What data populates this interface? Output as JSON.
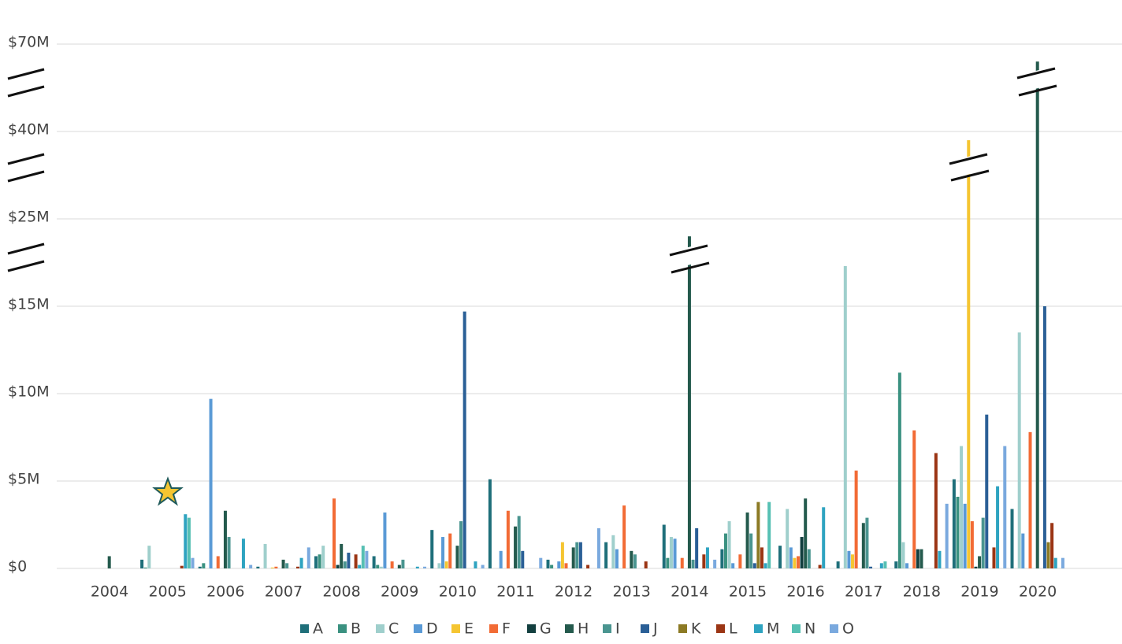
{
  "chart_data": {
    "type": "bar",
    "categories": [
      "2004",
      "2005",
      "2006",
      "2007",
      "2008",
      "2009",
      "2010",
      "2011",
      "2012",
      "2013",
      "2014",
      "2015",
      "2016",
      "2017",
      "2018",
      "2019",
      "2020"
    ],
    "ylim": [
      0,
      70
    ],
    "yticks": [
      {
        "value": 0,
        "label": "$0"
      },
      {
        "value": 5,
        "label": "$5M"
      },
      {
        "value": 10,
        "label": "$10M"
      },
      {
        "value": 15,
        "label": "$15M"
      },
      {
        "value": 25,
        "label": "$25M"
      },
      {
        "value": 40,
        "label": "$40M"
      },
      {
        "value": 70,
        "label": "$70M"
      }
    ],
    "grid": true,
    "legend": "bottom",
    "series": [
      {
        "name": "A",
        "color": "#1f6f7a",
        "values": [
          0,
          0.5,
          0.1,
          0.1,
          0.7,
          0.7,
          2.2,
          5.1,
          0.5,
          1.5,
          2.5,
          1.1,
          1.3,
          0.4,
          0.4,
          5.1,
          3.4
        ]
      },
      {
        "name": "B",
        "color": "#3a9180",
        "values": [
          0,
          0.05,
          0.3,
          0,
          0.8,
          0.2,
          0,
          0,
          0.2,
          0,
          0.6,
          2.0,
          0,
          0,
          11.2,
          4.1,
          0
        ]
      },
      {
        "name": "C",
        "color": "#9fcfcc",
        "values": [
          0,
          1.3,
          0,
          1.4,
          1.3,
          0.1,
          0.3,
          0,
          0,
          1.9,
          1.8,
          2.7,
          3.4,
          19.6,
          1.5,
          7.0,
          13.5
        ]
      },
      {
        "name": "D",
        "color": "#5a9ad6",
        "values": [
          0,
          0,
          9.7,
          0,
          0,
          3.2,
          1.8,
          1.0,
          0.4,
          1.1,
          1.7,
          0.3,
          1.2,
          1.0,
          0.3,
          3.7,
          2.0
        ]
      },
      {
        "name": "E",
        "color": "#f5c531",
        "values": [
          0,
          0,
          0,
          0.05,
          0,
          0,
          0.4,
          0,
          1.5,
          0,
          0,
          0,
          0.6,
          0.8,
          0,
          38.5,
          0
        ]
      },
      {
        "name": "F",
        "color": "#f26b35",
        "values": [
          0,
          0,
          0.7,
          0.1,
          4.0,
          0.4,
          2.0,
          3.3,
          0.3,
          3.6,
          0.6,
          0.8,
          0.7,
          5.6,
          7.9,
          2.7,
          7.8
        ]
      },
      {
        "name": "G",
        "color": "#133f3f",
        "values": [
          0,
          0,
          0,
          0,
          0.2,
          0,
          0,
          0,
          0,
          0,
          0,
          0,
          1.8,
          0,
          1.1,
          0.1,
          0
        ]
      },
      {
        "name": "H",
        "color": "#245a4d",
        "values": [
          0.7,
          0,
          3.3,
          0.5,
          1.4,
          0.2,
          1.3,
          2.4,
          1.2,
          1.0,
          23,
          3.2,
          4.0,
          2.6,
          1.1,
          0.7,
          64
        ]
      },
      {
        "name": "I",
        "color": "#4a9590",
        "values": [
          0,
          0,
          1.8,
          0.3,
          0.4,
          0.5,
          2.7,
          3.0,
          1.5,
          0.8,
          0.5,
          2.0,
          1.1,
          2.9,
          0,
          2.9,
          0
        ]
      },
      {
        "name": "J",
        "color": "#2a5f96",
        "values": [
          0,
          0,
          0,
          0,
          0.9,
          0,
          14.7,
          1.0,
          1.5,
          0,
          2.3,
          0.3,
          0,
          0.1,
          0,
          8.8,
          15.0
        ]
      },
      {
        "name": "K",
        "color": "#8c7a24",
        "values": [
          0,
          0,
          0,
          0,
          0,
          0,
          0,
          0,
          0,
          0,
          0,
          3.8,
          0,
          0,
          0,
          0,
          1.5
        ]
      },
      {
        "name": "L",
        "color": "#9b3514",
        "values": [
          0,
          0.15,
          0,
          0.1,
          0.8,
          0,
          0,
          0,
          0.2,
          0.4,
          0.8,
          1.2,
          0.2,
          0,
          6.6,
          1.2,
          2.6
        ]
      },
      {
        "name": "M",
        "color": "#2ea3c0",
        "values": [
          0,
          3.1,
          1.7,
          0.6,
          0.2,
          0.1,
          0.4,
          0,
          0,
          0,
          1.2,
          0.3,
          3.5,
          0.3,
          1.0,
          4.7,
          0.6
        ]
      },
      {
        "name": "N",
        "color": "#56c0b3",
        "values": [
          0,
          2.9,
          0,
          0,
          1.3,
          0,
          0,
          0,
          0,
          0,
          0,
          3.8,
          0,
          0.4,
          0,
          0,
          0
        ]
      },
      {
        "name": "O",
        "color": "#7aa9de",
        "values": [
          0,
          0.6,
          0.2,
          1.2,
          1.0,
          0.1,
          0.2,
          0.6,
          2.3,
          0,
          0.5,
          0,
          0,
          0,
          3.7,
          7.0,
          0.6
        ]
      }
    ]
  }
}
